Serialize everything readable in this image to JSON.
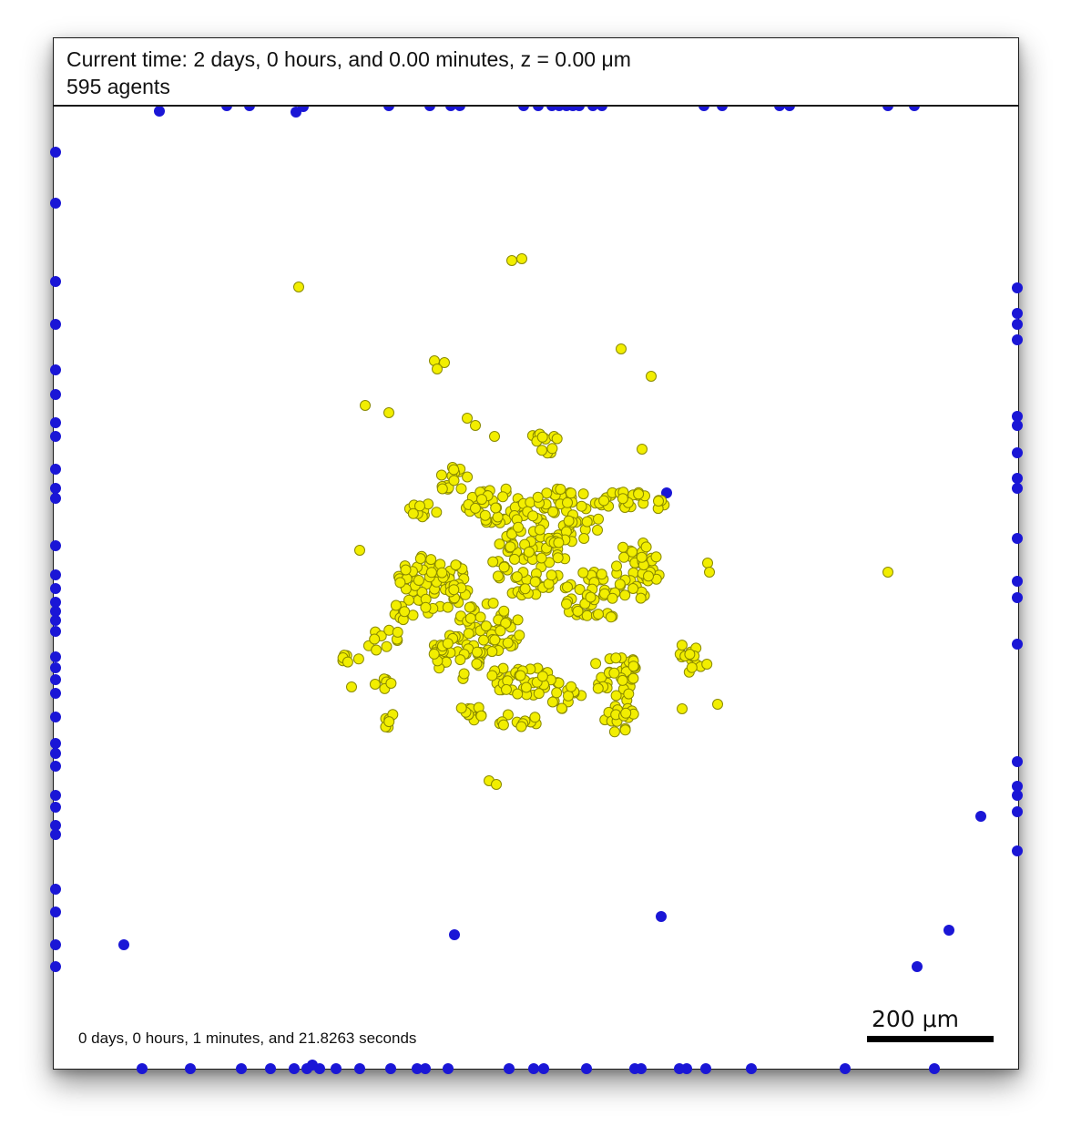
{
  "header": {
    "time_line": "Current time: 2 days, 0 hours, and 0.00 minutes, z = 0.00 μm",
    "agents_line": "595 agents"
  },
  "footer": {
    "elapsed": "0 days, 0 hours, 1 minutes, and 21.8263 seconds",
    "scale_label": "200 μm"
  },
  "colors": {
    "agent_yellow_fill": "#f2ee00",
    "agent_yellow_stroke": "#8a8a00",
    "agent_blue": "#1a16d6",
    "frame": "#1a1a1a"
  },
  "legend_colors_meaning": {
    "yellow": "cell agents cluster",
    "blue": "boundary agents"
  }
}
